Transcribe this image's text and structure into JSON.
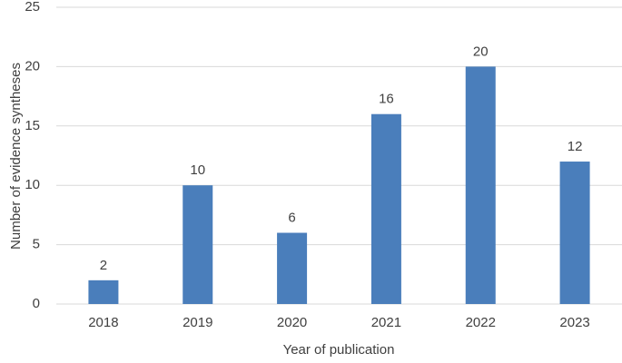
{
  "chart_data": {
    "type": "bar",
    "categories": [
      "2018",
      "2019",
      "2020",
      "2021",
      "2022",
      "2023"
    ],
    "values": [
      2,
      10,
      6,
      16,
      20,
      12
    ],
    "color": "#4a7ebb",
    "xlabel": "Year of publication",
    "ylabel": "Number of evidence syntheses",
    "ylim": [
      0,
      25
    ],
    "yticks": [
      0,
      5,
      10,
      15,
      20,
      25
    ],
    "grid": true
  }
}
